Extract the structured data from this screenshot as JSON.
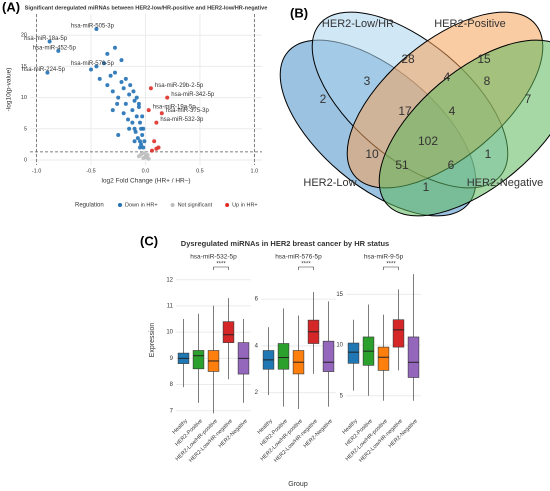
{
  "chart_data": [
    {
      "type": "scatter",
      "panel": "(A)",
      "title": "Significant deregulated miRNAs between HER2-low/HR-positive and HER2-low/HR-negative",
      "xlabel": "log2 Fold Change (HR+ / HR–)",
      "ylabel": "-log10(p-value)",
      "xlim": [
        -1.06,
        1.07
      ],
      "ylim": [
        -0.8,
        23.4
      ],
      "xticks": [
        {
          "value": -1,
          "label": "-1.0"
        },
        {
          "value": -0.5,
          "label": "-0.5"
        },
        {
          "value": 0,
          "label": "0.0"
        },
        {
          "value": 0.5,
          "label": "0.5"
        },
        {
          "value": 1,
          "label": "1.0"
        }
      ],
      "yticks": [
        0,
        5,
        10,
        15,
        20
      ],
      "thresholds": {
        "y": 1.3,
        "x": [
          -1,
          1
        ]
      },
      "legend_title": "Regulation",
      "series": [
        {
          "name": "Down in HR+",
          "color": "#2171b5",
          "x": [
            -0.9,
            -0.8,
            -0.45,
            -0.88,
            -0.45,
            -0.5,
            -0.42,
            -0.38,
            -0.35,
            -0.32,
            -0.3,
            -0.28,
            -0.25,
            -0.22,
            -0.2,
            -0.18,
            -0.15,
            -0.12,
            -0.1,
            -0.08,
            -0.06,
            -0.05,
            -0.04,
            -0.03,
            -0.3,
            -0.26,
            -0.2,
            -0.16,
            -0.12,
            -0.1,
            -0.09,
            -0.07,
            -0.05,
            -0.04,
            -0.02,
            -0.35,
            -0.28,
            -0.22,
            -0.18,
            -0.14,
            -0.11,
            -0.08,
            -0.06,
            -0.03,
            -0.02,
            -0.01,
            -0.25,
            -0.15,
            -0.1,
            -0.05
          ],
          "y": [
            14,
            17.5,
            21,
            19,
            15,
            14.5,
            13,
            15.5,
            12,
            13.5,
            11,
            14,
            10,
            12.5,
            11.5,
            9,
            10.5,
            8,
            9.5,
            7,
            8.5,
            6,
            5,
            4,
            8,
            9,
            7.5,
            6.5,
            6,
            5,
            4.5,
            3.5,
            3,
            2.5,
            2,
            17,
            18,
            16,
            13,
            12,
            11,
            10,
            9,
            7,
            5,
            3,
            4,
            5,
            3,
            2
          ]
        },
        {
          "name": "Not significant",
          "color": "#bdbdbd",
          "x": [
            -0.06,
            -0.04,
            -0.02,
            0,
            0.02,
            0.03,
            -0.01,
            0.01
          ],
          "y": [
            0.6,
            0.9,
            0.3,
            0.5,
            0.8,
            0.2,
            1.1,
            0.4
          ]
        },
        {
          "name": "Up in HR+",
          "color": "#de2d26",
          "x": [
            0.05,
            0.2,
            0.15,
            0.1,
            0.03,
            0.08,
            0.12,
            0.06,
            0.1
          ],
          "y": [
            11.5,
            10,
            7.5,
            6,
            8,
            3,
            2,
            1.5,
            1.8
          ]
        }
      ],
      "annotations": [
        {
          "text": "hsa-miR-505-3p",
          "x": -0.45,
          "y": 21,
          "series": 0
        },
        {
          "text": "hsa-miR-18a-5p",
          "x": -0.88,
          "y": 19,
          "series": 0
        },
        {
          "text": "hsa-miR-452-5p",
          "x": -0.8,
          "y": 17.5,
          "series": 0
        },
        {
          "text": "hsa-miR-576-5p",
          "x": -0.45,
          "y": 15,
          "series": 0
        },
        {
          "text": "hsa-miR-224-5p",
          "x": -0.9,
          "y": 14,
          "series": 0
        },
        {
          "text": "hsa-miR-29b-2-5p",
          "x": 0.05,
          "y": 11.5,
          "series": 2
        },
        {
          "text": "hsa-miR-342-5p",
          "x": 0.2,
          "y": 10,
          "series": 2
        },
        {
          "text": "hsa-miR-19a-5p",
          "x": 0.03,
          "y": 8,
          "series": 2
        },
        {
          "text": "hsa-miR-375-3p",
          "x": 0.15,
          "y": 7.5,
          "series": 2
        },
        {
          "text": "hsa-miR-532-3p",
          "x": 0.1,
          "y": 6,
          "series": 2
        }
      ]
    },
    {
      "type": "venn",
      "panel": "(B)",
      "sets": [
        {
          "name": "HER2-Low",
          "color": "#4a90c8"
        },
        {
          "name": "HER2-Low/HR",
          "color": "#a9d3ee"
        },
        {
          "name": "HER2-Positive",
          "color": "#f5a35a"
        },
        {
          "name": "HER2-Negative",
          "color": "#5cb85c"
        }
      ],
      "regions": [
        {
          "sets": [
            0
          ],
          "value": 2
        },
        {
          "sets": [
            1
          ],
          "value": 28
        },
        {
          "sets": [
            2
          ],
          "value": 15
        },
        {
          "sets": [
            3
          ],
          "value": 7
        },
        {
          "sets": [
            0,
            1
          ],
          "value": 3
        },
        {
          "sets": [
            1,
            2
          ],
          "value": 4
        },
        {
          "sets": [
            2,
            3
          ],
          "value": 8
        },
        {
          "sets": [
            0,
            1,
            2
          ],
          "value": 17
        },
        {
          "sets": [
            1,
            2,
            3
          ],
          "value": 4
        },
        {
          "sets": [
            0,
            1,
            2,
            3
          ],
          "value": 102
        },
        {
          "sets": [
            0,
            2
          ],
          "value": 10
        },
        {
          "sets": [
            0,
            2,
            3
          ],
          "value": 51
        },
        {
          "sets": [
            0,
            1,
            3
          ],
          "value": 6
        },
        {
          "sets": [
            1,
            3
          ],
          "value": 1
        },
        {
          "sets": [
            0,
            3
          ],
          "value": 1
        }
      ]
    },
    {
      "type": "box",
      "panel": "(C)",
      "title": "Dysregulated miRNAs in HER2 breast cancer by HR status",
      "xlabel": "Group",
      "ylabel": "Expression",
      "categories": [
        "Healthy",
        "HER2-Positive",
        "HER2-Low/HR-positive",
        "HER2-Low/HR-negative",
        "HER2-Negative"
      ],
      "colors": [
        "#1f77b4",
        "#2ca02c",
        "#ff7f0e",
        "#d62728",
        "#9467bd"
      ],
      "facets": [
        {
          "title": "hsa-miR-532-5p",
          "ylim": [
            6.8,
            12.6
          ],
          "yticks": [
            7,
            8,
            9,
            10,
            11,
            12
          ],
          "comparison": {
            "groups": [
              2,
              3
            ],
            "label": "****"
          },
          "boxes": [
            {
              "low": 7.9,
              "q1": 8.8,
              "median": 9.0,
              "q3": 9.2,
              "high": 10.5
            },
            {
              "low": 7.3,
              "q1": 8.6,
              "median": 9.1,
              "q3": 9.3,
              "high": 10.7
            },
            {
              "low": 6.9,
              "q1": 8.5,
              "median": 8.9,
              "q3": 9.3,
              "high": 11.0
            },
            {
              "low": 8.2,
              "q1": 9.6,
              "median": 9.9,
              "q3": 10.4,
              "high": 11.3
            },
            {
              "low": 7.3,
              "q1": 8.4,
              "median": 9.0,
              "q3": 9.6,
              "high": 10.5
            }
          ]
        },
        {
          "title": "hsa-miR-576-5p",
          "ylim": [
            1,
            7.5
          ],
          "yticks": [
            2,
            4,
            6
          ],
          "comparison": {
            "groups": [
              2,
              3
            ],
            "label": "****"
          },
          "boxes": [
            {
              "low": 1.9,
              "q1": 3.0,
              "median": 3.4,
              "q3": 3.8,
              "high": 4.8
            },
            {
              "low": 1.4,
              "q1": 3.0,
              "median": 3.5,
              "q3": 4.1,
              "high": 5.6
            },
            {
              "low": 1.3,
              "q1": 2.8,
              "median": 3.3,
              "q3": 3.8,
              "high": 5.3
            },
            {
              "low": 2.8,
              "q1": 4.1,
              "median": 4.6,
              "q3": 5.1,
              "high": 6.3
            },
            {
              "low": 1.4,
              "q1": 2.9,
              "median": 3.3,
              "q3": 4.2,
              "high": 5.9
            }
          ]
        },
        {
          "title": "hsa-miR-9-5p",
          "ylim": [
            3,
            18
          ],
          "yticks": [
            5,
            10,
            15
          ],
          "comparison": {
            "groups": [
              2,
              3
            ],
            "label": "****"
          },
          "boxes": [
            {
              "low": 5.5,
              "q1": 8.2,
              "median": 9.3,
              "q3": 10.2,
              "high": 12.5
            },
            {
              "low": 5.0,
              "q1": 8.0,
              "median": 9.4,
              "q3": 10.8,
              "high": 14.0
            },
            {
              "low": 4.5,
              "q1": 7.5,
              "median": 8.8,
              "q3": 9.8,
              "high": 13.0
            },
            {
              "low": 7.5,
              "q1": 9.8,
              "median": 11.5,
              "q3": 12.5,
              "high": 15.5
            },
            {
              "low": 4.5,
              "q1": 6.8,
              "median": 8.3,
              "q3": 10.8,
              "high": 17.0
            }
          ]
        }
      ]
    }
  ]
}
